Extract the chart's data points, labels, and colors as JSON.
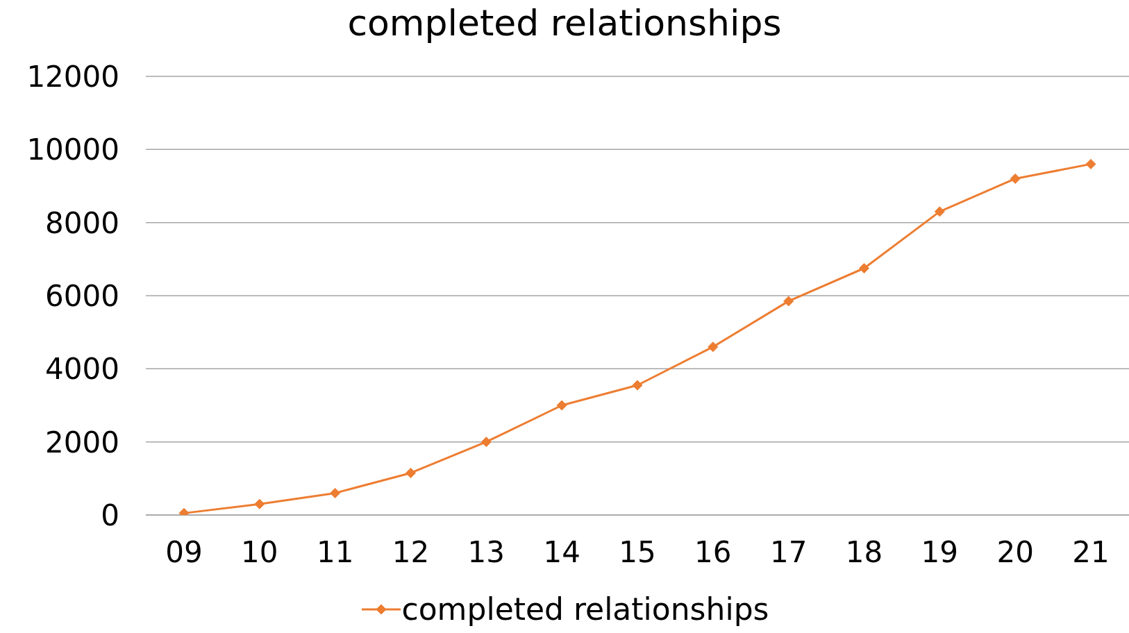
{
  "chart_data": {
    "type": "line",
    "title": "completed relationships",
    "categories": [
      "09",
      "10",
      "11",
      "12",
      "13",
      "14",
      "15",
      "16",
      "17",
      "18",
      "19",
      "20",
      "21"
    ],
    "series": [
      {
        "name": "completed relationships",
        "color": "#ed7d31",
        "values": [
          50,
          300,
          600,
          1150,
          2000,
          3000,
          3550,
          4600,
          5850,
          6750,
          8300,
          9200,
          9600
        ]
      }
    ],
    "ylim": [
      0,
      12000
    ],
    "yticks": [
      0,
      2000,
      4000,
      6000,
      8000,
      10000,
      12000
    ],
    "grid": "y",
    "legend": "bottom",
    "marker": "diamond",
    "line_style": "solid"
  }
}
